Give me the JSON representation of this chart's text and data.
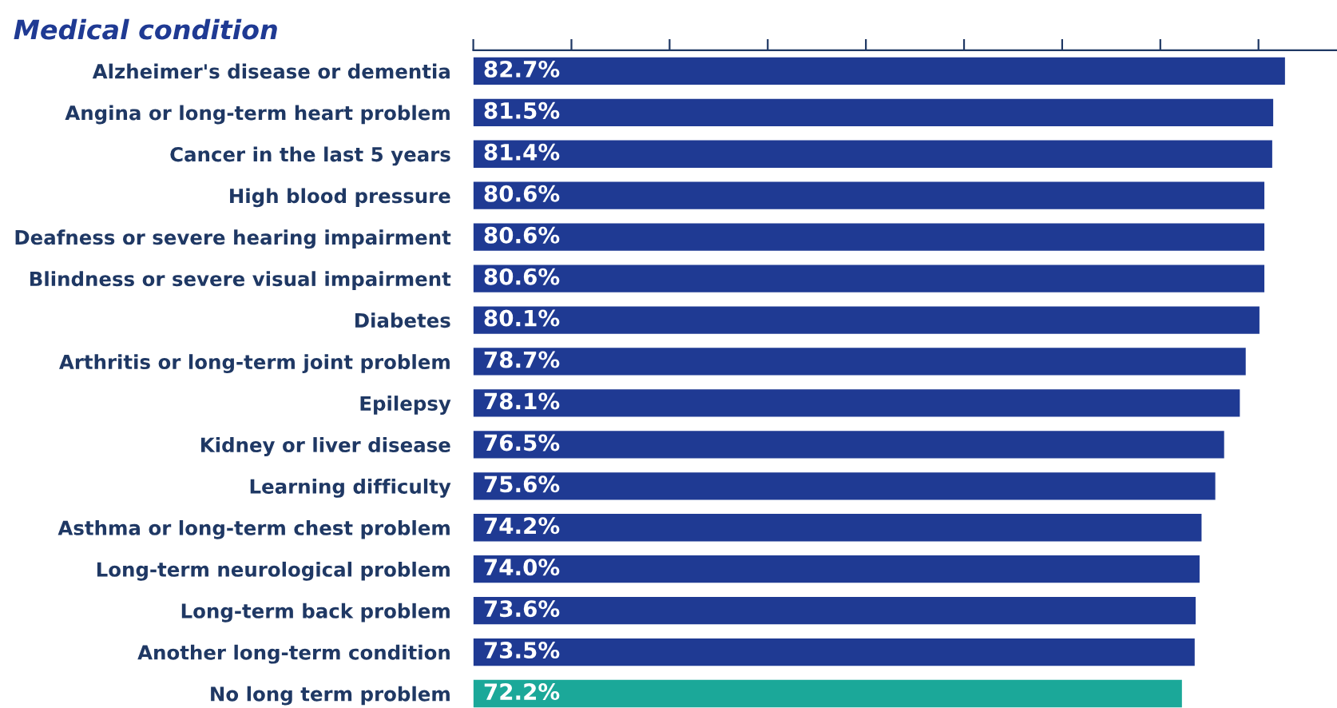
{
  "chart_data": {
    "type": "bar",
    "orientation": "horizontal",
    "title": "Medical condition",
    "categories": [
      "Alzheimer's disease or dementia",
      "Angina or long-term heart problem",
      "Cancer in the last 5 years",
      "High blood pressure",
      "Deafness or severe hearing impairment",
      "Blindness or severe visual impairment",
      "Diabetes",
      "Arthritis or long-term joint problem",
      "Epilepsy",
      "Kidney or liver disease",
      "Learning difficulty",
      "Asthma or long-term chest problem",
      "Long-term neurological problem",
      "Long-term back problem",
      "Another long-term condition",
      "No long term problem"
    ],
    "values": [
      82.7,
      81.5,
      81.4,
      80.6,
      80.6,
      80.6,
      80.1,
      78.7,
      78.1,
      76.5,
      75.6,
      74.2,
      74.0,
      73.6,
      73.5,
      72.2
    ],
    "value_labels": [
      "82.7%",
      "81.5%",
      "81.4%",
      "80.6%",
      "80.6%",
      "80.6%",
      "80.1%",
      "78.7%",
      "78.1%",
      "76.5%",
      "75.6%",
      "74.2%",
      "74.0%",
      "73.6%",
      "73.5%",
      "72.2%"
    ],
    "colors": [
      "#1f3a93",
      "#1f3a93",
      "#1f3a93",
      "#1f3a93",
      "#1f3a93",
      "#1f3a93",
      "#1f3a93",
      "#1f3a93",
      "#1f3a93",
      "#1f3a93",
      "#1f3a93",
      "#1f3a93",
      "#1f3a93",
      "#1f3a93",
      "#1f3a93",
      "#1ba899"
    ],
    "xlim": [
      0,
      88
    ],
    "xticks": [
      {
        "value": 0,
        "label": null
      },
      {
        "value": 10,
        "label": null
      },
      {
        "value": 20,
        "label": null
      },
      {
        "value": 30,
        "label": null
      },
      {
        "value": 40,
        "label": null
      },
      {
        "value": 50,
        "label": null
      },
      {
        "value": 60,
        "label": null
      },
      {
        "value": 70,
        "label": null
      },
      {
        "value": 80,
        "label": null
      }
    ],
    "grid": false,
    "legend": false
  }
}
